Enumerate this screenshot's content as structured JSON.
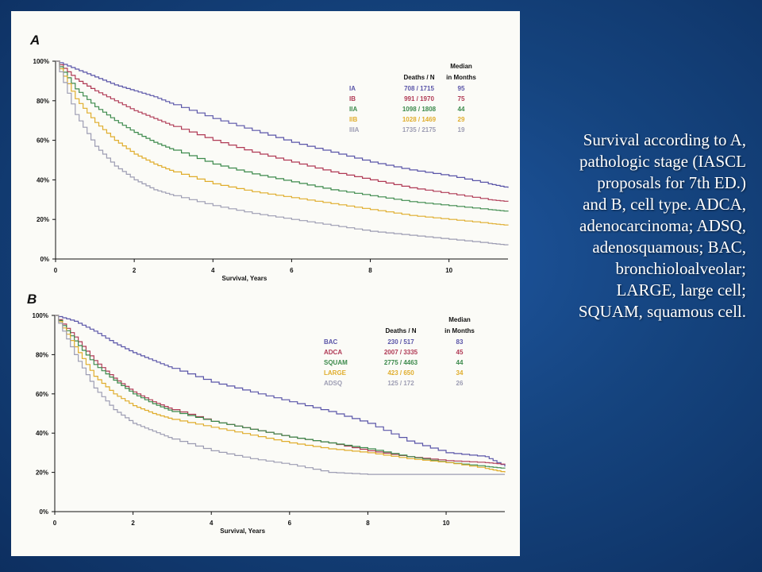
{
  "caption": {
    "lines": [
      "Survival according to A,",
      "pathologic stage (IASCL",
      "proposals for 7th ED.)",
      "and B, cell type. ADCA,",
      "adenocarcinoma; ADSQ,",
      "adenosquamous; BAC,",
      "bronchioloalveolar;",
      "LARGE, large cell;",
      "SQUAM, squamous cell."
    ]
  },
  "chart_data": [
    {
      "type": "line",
      "panel_label": "A",
      "xlabel": "Survival, Years",
      "ylabel": "",
      "xlim": [
        0,
        11.5
      ],
      "ylim": [
        0,
        100
      ],
      "x_ticks": [
        0,
        2,
        4,
        6,
        8,
        10
      ],
      "y_ticks": [
        0,
        20,
        40,
        60,
        80,
        100
      ],
      "y_tick_labels": [
        "0%",
        "20%",
        "40%",
        "60%",
        "80%",
        "100%"
      ],
      "legend_header": {
        "deaths": "Deaths / N",
        "median_line1": "Median",
        "median_line2": "in Months"
      },
      "x": [
        0,
        0.5,
        1,
        1.5,
        2,
        2.5,
        3,
        4,
        5,
        6,
        7,
        8,
        9,
        10,
        11,
        11.5
      ],
      "series": [
        {
          "name": "IA",
          "deaths_n": "708 / 1715",
          "median_months": "95",
          "color": "#5a55a8",
          "values": [
            100,
            96,
            92,
            88,
            85,
            82,
            78,
            71,
            65,
            59,
            54,
            49,
            45,
            42,
            38,
            36
          ]
        },
        {
          "name": "IB",
          "deaths_n": "991 / 1970",
          "median_months": "75",
          "color": "#b03a55",
          "values": [
            100,
            91,
            85,
            80,
            75,
            71,
            67,
            60,
            54,
            49,
            44,
            40,
            36,
            33,
            30,
            29
          ]
        },
        {
          "name": "IIA",
          "deaths_n": "1098 / 1808",
          "median_months": "44",
          "color": "#3c8a4c",
          "values": [
            100,
            86,
            77,
            70,
            64,
            59,
            55,
            48,
            43,
            39,
            35,
            32,
            29,
            27,
            25,
            24
          ]
        },
        {
          "name": "IIB",
          "deaths_n": "1028 / 1469",
          "median_months": "29",
          "color": "#e0ad2c",
          "values": [
            100,
            81,
            69,
            60,
            53,
            48,
            44,
            38,
            34,
            31,
            28,
            25,
            22,
            20,
            18,
            17
          ]
        },
        {
          "name": "IIIA",
          "deaths_n": "1735 / 2175",
          "median_months": "19",
          "color": "#9d9db3",
          "values": [
            100,
            73,
            57,
            47,
            40,
            35,
            32,
            27,
            23,
            20,
            17,
            14,
            12,
            10,
            8,
            7
          ]
        }
      ]
    },
    {
      "type": "line",
      "panel_label": "B",
      "xlabel": "Survival, Years",
      "ylabel": "",
      "xlim": [
        0,
        11.5
      ],
      "ylim": [
        0,
        100
      ],
      "x_ticks": [
        0,
        2,
        4,
        6,
        8,
        10
      ],
      "y_ticks": [
        0,
        20,
        40,
        60,
        80,
        100
      ],
      "y_tick_labels": [
        "0%",
        "20%",
        "40%",
        "60%",
        "80%",
        "100%"
      ],
      "legend_header": {
        "deaths": "Deaths / N",
        "median_line1": "Median",
        "median_line2": "in Months"
      },
      "x": [
        0,
        0.5,
        1,
        1.5,
        2,
        2.5,
        3,
        4,
        5,
        6,
        7,
        8,
        9,
        10,
        11,
        11.5
      ],
      "series": [
        {
          "name": "BAC",
          "deaths_n": "230 / 517",
          "median_months": "83",
          "color": "#5a55a8",
          "values": [
            100,
            97,
            92,
            86,
            81,
            77,
            73,
            66,
            61,
            56,
            51,
            45,
            36,
            30,
            28,
            23
          ]
        },
        {
          "name": "ADCA",
          "deaths_n": "2007 / 3335",
          "median_months": "45",
          "color": "#b03a55",
          "values": [
            100,
            89,
            77,
            68,
            61,
            56,
            52,
            46,
            42,
            38,
            35,
            31,
            28,
            26,
            25,
            24
          ]
        },
        {
          "name": "SQUAM",
          "deaths_n": "2775 / 4463",
          "median_months": "44",
          "color": "#3c8a4c",
          "values": [
            100,
            87,
            75,
            67,
            60,
            55,
            51,
            46,
            42,
            38,
            35,
            32,
            28,
            25,
            23,
            22
          ]
        },
        {
          "name": "LARGE",
          "deaths_n": "423 / 650",
          "median_months": "34",
          "color": "#e0ad2c",
          "values": [
            100,
            84,
            69,
            60,
            54,
            50,
            47,
            43,
            39,
            35,
            32,
            30,
            27,
            25,
            22,
            20
          ]
        },
        {
          "name": "ADSQ",
          "deaths_n": "125 / 172",
          "median_months": "26",
          "color": "#9d9db3",
          "values": [
            100,
            80,
            63,
            52,
            45,
            41,
            37,
            31,
            27,
            24,
            20,
            19,
            19,
            19,
            19,
            19
          ]
        }
      ]
    }
  ]
}
